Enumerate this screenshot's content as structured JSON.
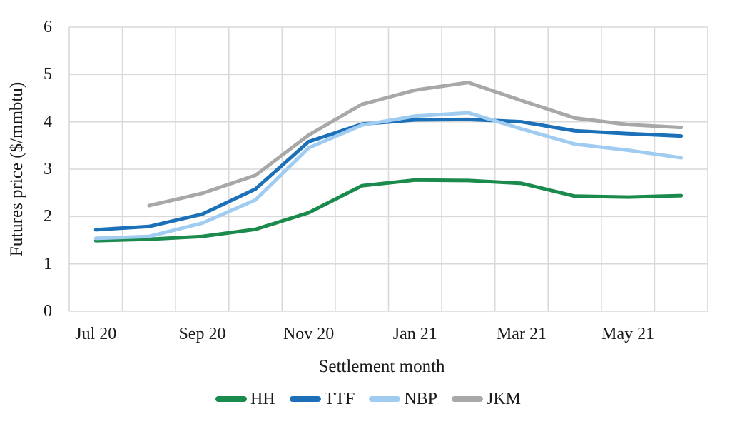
{
  "style": {
    "background": "#ffffff",
    "gridline_color": "#d9d9d9",
    "text_color": "#1a1a1a"
  },
  "chart_data": {
    "type": "line",
    "title": "",
    "xlabel": "Settlement month",
    "ylabel": "Futures price ($/mmbtu)",
    "ylim": [
      0,
      6
    ],
    "yticks": [
      0,
      1,
      2,
      3,
      4,
      5,
      6
    ],
    "grid": true,
    "legend_position": "bottom",
    "categories": [
      "Jul 20",
      "Aug 20",
      "Sep 20",
      "Oct 20",
      "Nov 20",
      "Dec 20",
      "Jan 21",
      "Feb 21",
      "Mar 21",
      "Apr 21",
      "May 21",
      "Jun 21"
    ],
    "x_tick_labels": [
      "Jul 20",
      "Sep 20",
      "Nov 20",
      "Jan 21",
      "Mar 21",
      "May 21"
    ],
    "x_tick_every": 2,
    "series": [
      {
        "name": "HH",
        "color": "#1a8a4d",
        "values": [
          1.49,
          1.52,
          1.58,
          1.73,
          2.08,
          2.65,
          2.77,
          2.76,
          2.7,
          2.43,
          2.41,
          2.44
        ]
      },
      {
        "name": "TTF",
        "color": "#1c70b8",
        "values": [
          1.72,
          1.79,
          2.05,
          2.58,
          3.58,
          3.95,
          4.04,
          4.05,
          4.0,
          3.81,
          3.75,
          3.7
        ]
      },
      {
        "name": "NBP",
        "color": "#9fccf0",
        "values": [
          1.54,
          1.58,
          1.86,
          2.35,
          3.45,
          3.93,
          4.12,
          4.19,
          3.85,
          3.53,
          3.4,
          3.24
        ]
      },
      {
        "name": "JKM",
        "color": "#a8a8a8",
        "values": [
          null,
          2.23,
          2.49,
          2.87,
          3.72,
          4.37,
          4.67,
          4.83,
          4.45,
          4.08,
          3.94,
          3.88
        ]
      }
    ]
  }
}
